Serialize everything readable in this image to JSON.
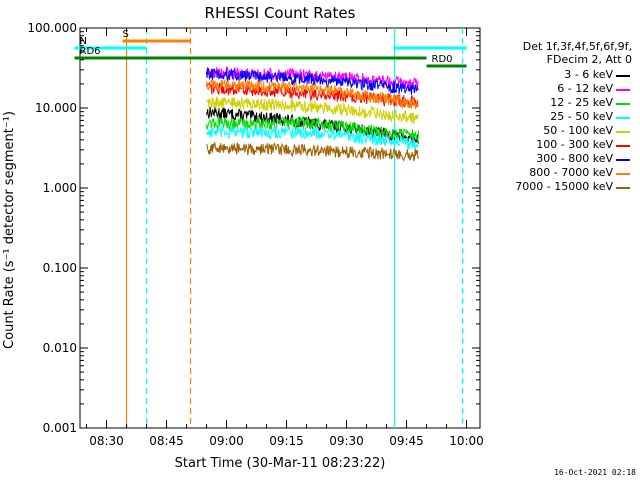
{
  "chart_data": {
    "type": "line",
    "title": "RHESSI Count Rates",
    "xlabel": "Start Time (30-Mar-11 08:23:22)",
    "ylabel": "Count Rate (s⁻¹ detector segment⁻¹)",
    "y_scale": "log",
    "ylim": [
      0.001,
      100
    ],
    "x_range_minutes": [
      "08:23:22",
      "10:03:22"
    ],
    "y_ticks": [
      "0.001",
      "0.010",
      "0.100",
      "1.000",
      "10.000",
      "100.000"
    ],
    "x_ticks": [
      {
        "label": "08:30",
        "minute": 30
      },
      {
        "label": "08:45",
        "minute": 45
      },
      {
        "label": "09:00",
        "minute": 60
      },
      {
        "label": "09:15",
        "minute": 75
      },
      {
        "label": "09:30",
        "minute": 90
      },
      {
        "label": "09:45",
        "minute": 105
      },
      {
        "label": "10:00",
        "minute": 120
      }
    ],
    "legend_header": [
      "Det 1f,3f,4f,5f,6f,9f,",
      "FDecim 2, Att 0"
    ],
    "legend_placement": "right",
    "series": [
      {
        "name": "3 - 6 keV",
        "color": "#000000",
        "start_min": 55,
        "end_min": 108,
        "level_start": 9.0,
        "level_mid": 6.5,
        "level_end": 4.0
      },
      {
        "name": "6 - 12 keV",
        "color": "#ff00ff",
        "start_min": 55,
        "end_min": 108,
        "level_start": 28,
        "level_mid": 26,
        "level_end": 20
      },
      {
        "name": "12 - 25 keV",
        "color": "#00dd00",
        "start_min": 55,
        "end_min": 108,
        "level_start": 6.5,
        "level_mid": 6.5,
        "level_end": 4.5
      },
      {
        "name": "25 - 50 keV",
        "color": "#00ffff",
        "start_min": 55,
        "end_min": 108,
        "level_start": 5.0,
        "level_mid": 5.0,
        "level_end": 3.5
      },
      {
        "name": "50 - 100 keV",
        "color": "#d0d000",
        "start_min": 55,
        "end_min": 108,
        "level_start": 12,
        "level_mid": 10.5,
        "level_end": 7.5
      },
      {
        "name": "100 - 300 keV",
        "color": "#ff0000",
        "start_min": 55,
        "end_min": 108,
        "level_start": 18,
        "level_mid": 15,
        "level_end": 12
      },
      {
        "name": "300 - 800 keV",
        "color": "#0000ff",
        "start_min": 55,
        "end_min": 108,
        "level_start": 27,
        "level_mid": 23,
        "level_end": 17
      },
      {
        "name": "800 - 7000 keV",
        "color": "#ff8000",
        "start_min": 55,
        "end_min": 108,
        "level_start": 20,
        "level_mid": 18,
        "level_end": 11
      },
      {
        "name": "7000 - 15000 keV",
        "color": "#a06000",
        "start_min": 55,
        "end_min": 108,
        "level_start": 3.2,
        "level_mid": 3.0,
        "level_end": 2.6
      }
    ],
    "annotations": [
      {
        "label": "S",
        "color": "#ff8000",
        "start_min": 34,
        "end_min": 51
      },
      {
        "label": "N",
        "color": "#00ffff",
        "start_min": 22,
        "end_min": 40
      },
      {
        "label": "RD6",
        "color": "#008000",
        "start_min": 22,
        "end_min": 110
      },
      {
        "label": "RD0",
        "color": "#008000",
        "start_min": 110,
        "end_min": 120
      },
      {
        "label": "",
        "color": "#00ffff",
        "start_min": 102,
        "end_min": 120
      }
    ],
    "vertical_markers": [
      {
        "minute": 35,
        "color": "#ff8000",
        "style": "solid"
      },
      {
        "minute": 40,
        "color": "#00ffff",
        "style": "dashed"
      },
      {
        "minute": 51,
        "color": "#ff8000",
        "style": "dashed"
      },
      {
        "minute": 102,
        "color": "#00ffff",
        "style": "solid"
      },
      {
        "minute": 119,
        "color": "#00ffff",
        "style": "dashed"
      }
    ]
  },
  "footer_text": "16-Oct-2021 02:18"
}
